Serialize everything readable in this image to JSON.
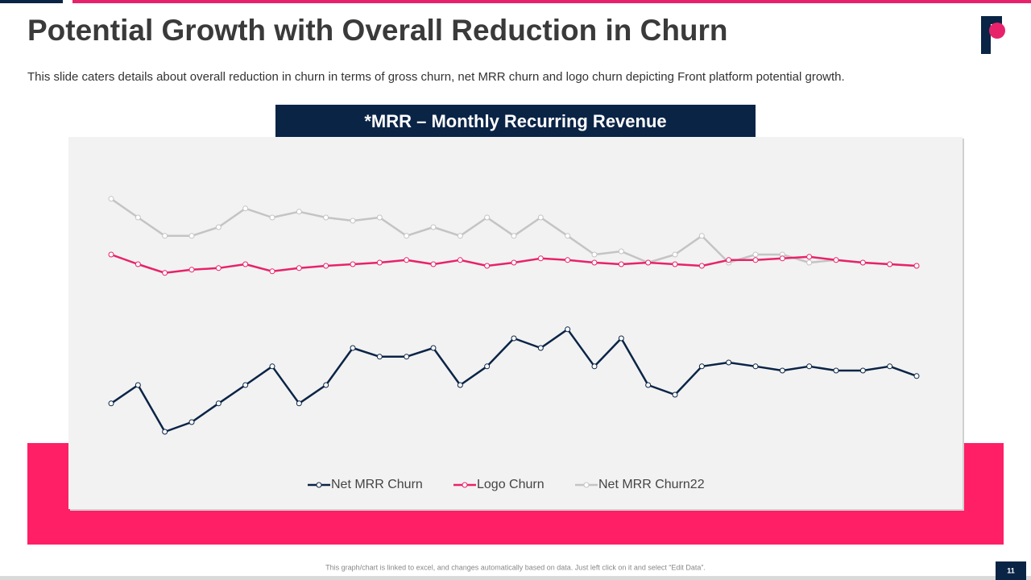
{
  "slide": {
    "title": "Potential Growth with Overall Reduction in Churn",
    "subtitle": "This slide caters details about overall reduction in churn in terms of gross churn,  net MRR churn and logo churn depicting Front platform potential growth.",
    "banner": "*MRR – Monthly Recurring Revenue",
    "footnote": "This graph/chart is linked to excel, and changes automatically based on data. Just left click on it and select “Edit Data”.",
    "page_number": "11"
  },
  "chart_data": {
    "type": "line",
    "ylim": [
      0,
      100
    ],
    "legend": "bottom",
    "series": [
      {
        "name": "Net MRR Churn",
        "color": "#0a2446",
        "values": [
          14.8,
          20.5,
          6,
          9,
          14.8,
          20.5,
          26.3,
          14.8,
          20.5,
          32,
          29.3,
          29.3,
          32,
          20.5,
          26.3,
          35,
          32,
          37.8,
          26.3,
          35,
          20.5,
          17.5,
          26.3,
          27.5,
          26.3,
          25,
          26.3,
          25,
          25,
          26.3,
          23.3
        ]
      },
      {
        "name": "Logo Churn",
        "color": "#e8226a",
        "values": [
          61,
          58,
          55.3,
          56.3,
          56.8,
          58,
          55.8,
          56.8,
          57.5,
          58,
          58.5,
          59.3,
          58,
          59.3,
          57.5,
          58.5,
          59.8,
          59.3,
          58.5,
          58,
          58.5,
          58,
          57.5,
          59.3,
          59.3,
          59.8,
          60.3,
          59.3,
          58.5,
          58,
          57.5
        ]
      },
      {
        "name": "Net MRR Churn22",
        "color": "#c4c4c4",
        "values": [
          78.3,
          72.5,
          66.8,
          66.8,
          69.5,
          75.3,
          72.5,
          74.3,
          72.5,
          71.5,
          72.5,
          66.8,
          69.5,
          66.8,
          72.5,
          66.8,
          72.5,
          66.8,
          61,
          62,
          58.5,
          61,
          66.8,
          58.5,
          61,
          61,
          58.5,
          59.3,
          58.5,
          58,
          57.5
        ]
      }
    ]
  }
}
